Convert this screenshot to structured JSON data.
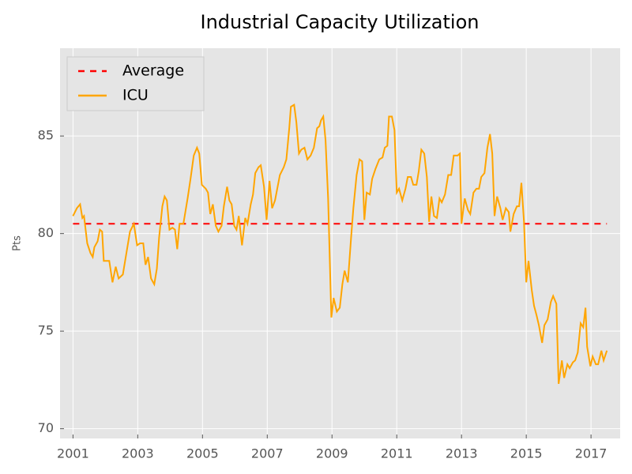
{
  "chart_data": {
    "type": "line",
    "title": "Industrial Capacity Utilization",
    "ylabel": "Pts",
    "xlim": [
      2000.6,
      2017.9
    ],
    "ylim": [
      69.5,
      89.5
    ],
    "xticks": [
      2001,
      2003,
      2005,
      2007,
      2009,
      2011,
      2013,
      2015,
      2017
    ],
    "yticks": [
      70,
      75,
      80,
      85
    ],
    "grid": true,
    "legend": "upper left",
    "series": [
      {
        "name": "Average",
        "color": "#ff0000",
        "style": "dashed",
        "x": [
          2001.0,
          2017.49
        ],
        "values": [
          80.5,
          80.5
        ]
      },
      {
        "name": "ICU",
        "color": "#ffa500",
        "style": "solid",
        "x": [
          2001.0,
          2001.12,
          2001.22,
          2001.29,
          2001.34,
          2001.44,
          2001.54,
          2001.61,
          2001.66,
          2001.76,
          2001.83,
          2001.9,
          2001.95,
          2002.12,
          2002.22,
          2002.32,
          2002.41,
          2002.54,
          2002.66,
          2002.76,
          2002.88,
          2002.98,
          2003.07,
          2003.17,
          2003.24,
          2003.32,
          2003.41,
          2003.51,
          2003.59,
          2003.66,
          2003.76,
          2003.83,
          2003.9,
          2003.98,
          2004.07,
          2004.15,
          2004.22,
          2004.29,
          2004.41,
          2004.54,
          2004.63,
          2004.73,
          2004.83,
          2004.9,
          2004.98,
          2005.1,
          2005.17,
          2005.24,
          2005.32,
          2005.41,
          2005.49,
          2005.59,
          2005.66,
          2005.76,
          2005.83,
          2005.9,
          2005.98,
          2006.05,
          2006.12,
          2006.22,
          2006.32,
          2006.39,
          2006.49,
          2006.56,
          2006.63,
          2006.73,
          2006.8,
          2006.9,
          2006.98,
          2007.07,
          2007.15,
          2007.24,
          2007.39,
          2007.51,
          2007.59,
          2007.68,
          2007.73,
          2007.83,
          2007.9,
          2007.98,
          2008.05,
          2008.15,
          2008.24,
          2008.34,
          2008.44,
          2008.54,
          2008.61,
          2008.66,
          2008.73,
          2008.8,
          2008.88,
          2008.98,
          2009.05,
          2009.15,
          2009.24,
          2009.32,
          2009.39,
          2009.49,
          2009.59,
          2009.66,
          2009.76,
          2009.85,
          2009.93,
          2010.0,
          2010.07,
          2010.17,
          2010.24,
          2010.34,
          2010.46,
          2010.56,
          2010.63,
          2010.71,
          2010.76,
          2010.85,
          2010.93,
          2011.0,
          2011.07,
          2011.17,
          2011.27,
          2011.34,
          2011.44,
          2011.51,
          2011.61,
          2011.68,
          2011.76,
          2011.85,
          2011.93,
          2012.0,
          2012.07,
          2012.15,
          2012.24,
          2012.32,
          2012.39,
          2012.49,
          2012.59,
          2012.68,
          2012.76,
          2012.88,
          2012.95,
          2013.0,
          2013.1,
          2013.2,
          2013.27,
          2013.37,
          2013.46,
          2013.54,
          2013.61,
          2013.71,
          2013.8,
          2013.88,
          2013.95,
          2014.02,
          2014.1,
          2014.2,
          2014.27,
          2014.37,
          2014.46,
          2014.51,
          2014.61,
          2014.71,
          2014.78,
          2014.85,
          2014.93,
          2015.0,
          2015.07,
          2015.17,
          2015.24,
          2015.32,
          2015.39,
          2015.49,
          2015.56,
          2015.66,
          2015.76,
          2015.83,
          2015.93,
          2016.0,
          2016.1,
          2016.17,
          2016.27,
          2016.34,
          2016.44,
          2016.51,
          2016.59,
          2016.68,
          2016.76,
          2016.83,
          2016.88,
          2016.98,
          2017.05,
          2017.15,
          2017.22,
          2017.32,
          2017.39,
          2017.49
        ],
        "values": [
          80.9,
          81.3,
          81.5,
          80.8,
          80.9,
          79.5,
          79.0,
          78.8,
          79.3,
          79.6,
          80.2,
          80.1,
          78.6,
          78.6,
          77.5,
          78.3,
          77.7,
          77.9,
          79.1,
          80.1,
          80.5,
          79.4,
          79.5,
          79.5,
          78.4,
          78.8,
          77.7,
          77.4,
          78.2,
          79.8,
          81.4,
          81.9,
          81.7,
          80.2,
          80.3,
          80.2,
          79.2,
          80.5,
          80.5,
          81.8,
          82.8,
          84.0,
          84.4,
          84.1,
          82.5,
          82.3,
          82.1,
          81.0,
          81.5,
          80.4,
          80.1,
          80.4,
          81.4,
          82.4,
          81.7,
          81.5,
          80.4,
          80.2,
          80.9,
          79.4,
          80.8,
          80.5,
          81.5,
          82.0,
          83.1,
          83.4,
          83.5,
          82.4,
          80.7,
          82.7,
          81.3,
          81.7,
          83.0,
          83.4,
          83.8,
          85.4,
          86.5,
          86.6,
          85.7,
          84.1,
          84.3,
          84.4,
          83.8,
          84.0,
          84.4,
          85.4,
          85.5,
          85.8,
          86.0,
          84.8,
          81.8,
          75.7,
          76.7,
          76.0,
          76.2,
          77.4,
          78.1,
          77.5,
          79.8,
          81.3,
          83.0,
          83.8,
          83.7,
          80.7,
          82.1,
          82.0,
          82.8,
          83.3,
          83.8,
          83.9,
          84.4,
          84.5,
          86.0,
          86.0,
          85.3,
          82.1,
          82.3,
          81.7,
          82.3,
          82.9,
          82.9,
          82.5,
          82.5,
          83.2,
          84.3,
          84.1,
          82.9,
          80.6,
          81.9,
          80.9,
          80.8,
          81.8,
          81.6,
          82.0,
          83.0,
          83.0,
          84.0,
          84.0,
          84.1,
          80.5,
          81.8,
          81.2,
          81.0,
          82.1,
          82.3,
          82.3,
          82.9,
          83.1,
          84.4,
          85.1,
          84.1,
          80.9,
          81.9,
          81.3,
          80.7,
          81.3,
          81.1,
          80.1,
          81.0,
          81.4,
          81.4,
          82.6,
          80.6,
          77.5,
          78.6,
          77.1,
          76.3,
          75.8,
          75.3,
          74.4,
          75.3,
          75.6,
          76.5,
          76.8,
          76.4,
          72.3,
          73.5,
          72.6,
          73.3,
          73.1,
          73.4,
          73.5,
          73.9,
          75.4,
          75.2,
          76.2,
          74.2,
          73.2,
          73.7,
          73.3,
          73.3,
          74.0,
          73.5,
          74.0
        ]
      }
    ]
  }
}
